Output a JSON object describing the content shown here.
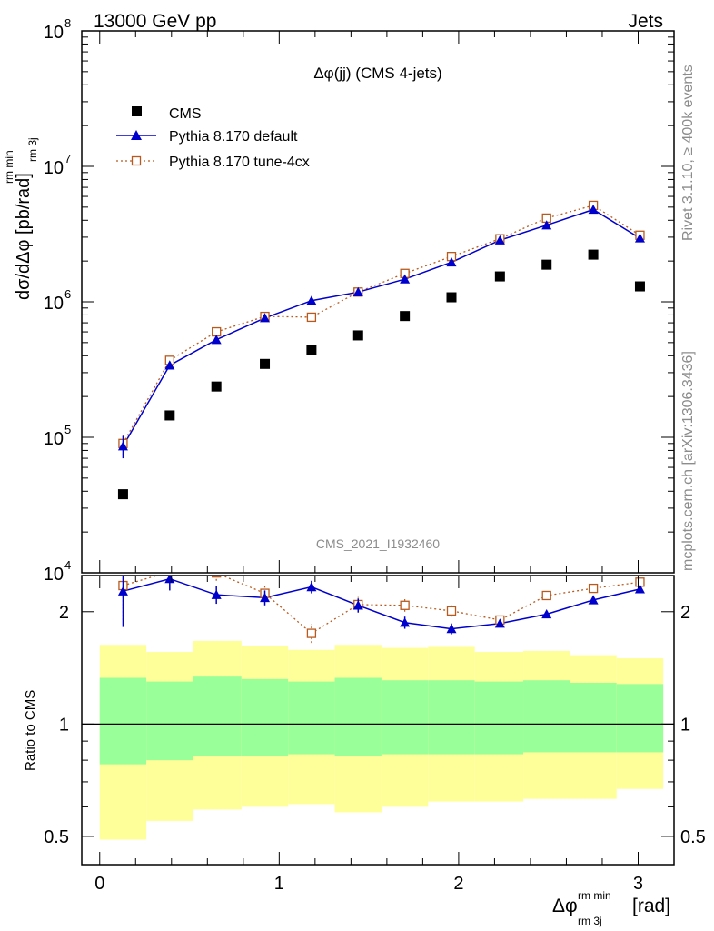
{
  "header": {
    "left": "13000 GeV pp",
    "right": "Jets"
  },
  "side": {
    "rivet": "Rivet 3.1.10, ≥ 400k events",
    "mcplots": "mcplots.cern.ch [arXiv:1306.3436]"
  },
  "chart_data": {
    "type": "scatter",
    "title": "Δφ(jj) (CMS 4-jets)",
    "watermark": "CMS_2021_I1932460",
    "ylabel_main": "dσ/dΔφ [pb/rad]",
    "ylabel_main_sup": "rm min",
    "ylabel_main_sub": "rm 3j",
    "ylabel_ratio": "Ratio to CMS",
    "xlabel": "Δφ [rad]",
    "xlabel_sup": "rm min",
    "xlabel_sub": "rm 3j",
    "xlim": [
      -0.1,
      3.2
    ],
    "ylim_main": [
      10000,
      100000000
    ],
    "ylog": true,
    "ylim_ratio": [
      0.42,
      2.5
    ],
    "ratio_log": true,
    "x_ticks": [
      "0",
      "1",
      "2",
      "3"
    ],
    "y_ticks_main": [
      "10^4",
      "10^5",
      "10^6",
      "10^7",
      "10^8"
    ],
    "y_ticks_ratio": [
      "0.5",
      "1",
      "2"
    ],
    "legend": [
      "CMS",
      "Pythia 8.170 default",
      "Pythia 8.170 tune-4cx"
    ],
    "x": [
      0.13,
      0.39,
      0.65,
      0.92,
      1.18,
      1.44,
      1.7,
      1.96,
      2.23,
      2.49,
      2.75,
      3.01
    ],
    "bin_edges": [
      0.0,
      0.26,
      0.52,
      0.79,
      1.05,
      1.31,
      1.57,
      1.83,
      2.09,
      2.36,
      2.62,
      2.88,
      3.14
    ],
    "series": [
      {
        "name": "CMS",
        "marker": "filled-square",
        "color": "#000000",
        "values": [
          38000,
          145000,
          237000,
          348000,
          438000,
          565000,
          785000,
          1080000,
          1540000,
          1880000,
          2230000,
          1300000
        ]
      },
      {
        "name": "Pythia 8.170 default",
        "marker": "filled-triangle",
        "color": "#0000cc",
        "line": "solid",
        "values": [
          86000,
          340000,
          525000,
          760000,
          1020000,
          1180000,
          1470000,
          1960000,
          2850000,
          3680000,
          4800000,
          2950000
        ],
        "yerr": [
          16000,
          12000,
          13000,
          14000,
          15000,
          20000,
          25000,
          30000,
          40000,
          50000,
          60000,
          45000
        ]
      },
      {
        "name": "Pythia 8.170 tune-4cx",
        "marker": "open-square",
        "color": "#b85a1e",
        "line": "dotted",
        "values": [
          90000,
          370000,
          600000,
          780000,
          770000,
          1180000,
          1620000,
          2160000,
          2920000,
          4150000,
          5150000,
          3100000
        ],
        "yerr": [
          16000,
          12000,
          13000,
          14000,
          20000,
          20000,
          25000,
          30000,
          40000,
          50000,
          60000,
          45000
        ]
      }
    ],
    "ratio": {
      "default": [
        2.27,
        2.45,
        2.22,
        2.18,
        2.33,
        2.08,
        1.87,
        1.8,
        1.86,
        1.97,
        2.15,
        2.3
      ],
      "default_err": [
        0.45,
        0.17,
        0.12,
        0.1,
        0.09,
        0.09,
        0.07,
        0.06,
        0.04,
        0.04,
        0.04,
        0.04
      ],
      "tune4cx": [
        2.35,
        2.56,
        2.54,
        2.24,
        1.75,
        2.09,
        2.08,
        2.01,
        1.9,
        2.21,
        2.31,
        2.4
      ],
      "tune4cx_err": [
        0.45,
        0.17,
        0.12,
        0.12,
        0.1,
        0.1,
        0.08,
        0.07,
        0.05,
        0.05,
        0.05,
        0.05
      ],
      "band_inner_hi": [
        1.33,
        1.3,
        1.34,
        1.32,
        1.3,
        1.33,
        1.31,
        1.31,
        1.3,
        1.31,
        1.29,
        1.28
      ],
      "band_inner_lo": [
        0.78,
        0.8,
        0.82,
        0.82,
        0.83,
        0.82,
        0.83,
        0.83,
        0.83,
        0.84,
        0.84,
        0.84
      ],
      "band_outer_hi": [
        1.63,
        1.56,
        1.67,
        1.62,
        1.58,
        1.63,
        1.6,
        1.61,
        1.56,
        1.57,
        1.53,
        1.5
      ],
      "band_outer_lo": [
        0.49,
        0.55,
        0.59,
        0.6,
        0.61,
        0.58,
        0.6,
        0.62,
        0.62,
        0.63,
        0.63,
        0.67
      ]
    },
    "colors": {
      "band_inner": "#99ff99",
      "band_outer": "#ffff99"
    }
  }
}
